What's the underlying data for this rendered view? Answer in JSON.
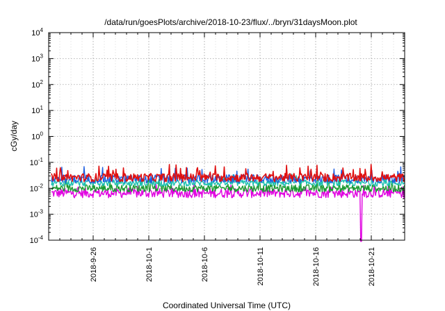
{
  "chart_data": {
    "type": "line",
    "title": "/data/run/goesPlots/archive/2018-10-23/flux/../bryn/31daysMoon.plot",
    "xlabel": "Coordinated Universal Time (UTC)",
    "ylabel": "cGy/day",
    "yscale": "log",
    "ylim": [
      0.0001,
      10000
    ],
    "y_ticks": [
      {
        "value": 0.0001,
        "base": "10",
        "exp": "-4"
      },
      {
        "value": 0.001,
        "base": "10",
        "exp": "-3"
      },
      {
        "value": 0.01,
        "base": "10",
        "exp": "-2"
      },
      {
        "value": 0.1,
        "base": "10",
        "exp": "-1"
      },
      {
        "value": 1,
        "base": "10",
        "exp": "0"
      },
      {
        "value": 10,
        "base": "10",
        "exp": "1"
      },
      {
        "value": 100,
        "base": "10",
        "exp": "2"
      },
      {
        "value": 1000,
        "base": "10",
        "exp": "3"
      },
      {
        "value": 10000,
        "base": "10",
        "exp": "4"
      }
    ],
    "xlim": [
      "2018-09-22",
      "2018-10-24"
    ],
    "x_ticks": [
      "2018-9-26",
      "2018-10-1",
      "2018-10-6",
      "2018-10-11",
      "2018-10-16",
      "2018-10-21"
    ],
    "grid": true,
    "series": [
      {
        "color": "#e01010",
        "level": 0.026,
        "spread": 0.16,
        "spike": 0.07
      },
      {
        "color": "#1f5fe0",
        "level": 0.023,
        "spread": 0.16,
        "spike": 0.06
      },
      {
        "color": "#1cc0b0",
        "level": 0.016,
        "spread": 0.12,
        "spike": 0.03
      },
      {
        "color": "#1a9a30",
        "level": 0.01,
        "spread": 0.14,
        "spike": 0.02
      },
      {
        "color": "#e000e0",
        "level": 0.0065,
        "spread": 0.18,
        "spike": 0.012,
        "dip_at": "2018-10-20T02:00",
        "dip_value": 9e-05
      }
    ]
  }
}
